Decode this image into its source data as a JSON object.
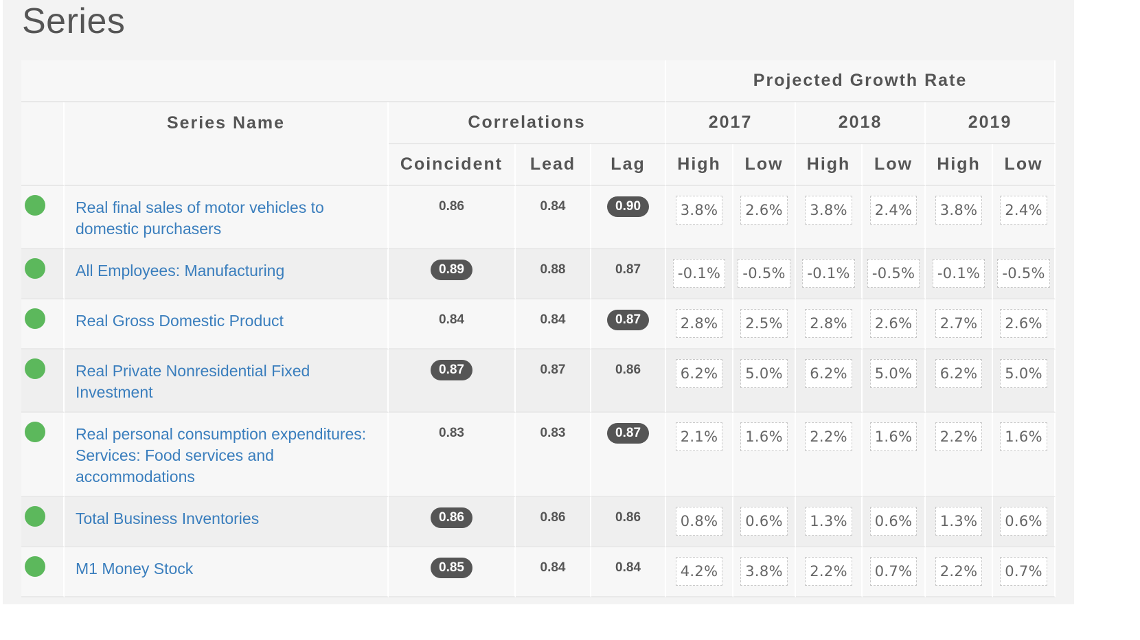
{
  "page": {
    "title": "Series"
  },
  "table": {
    "headers": {
      "projected_growth_rate": "Projected Growth Rate",
      "series_name": "Series Name",
      "correlations": "Correlations",
      "years": [
        "2017",
        "2018",
        "2019"
      ],
      "coincident": "Coincident",
      "lead": "Lead",
      "lag": "Lag",
      "high": "High",
      "low": "Low"
    },
    "rows": [
      {
        "status_color": "#5cb85c",
        "name": "Real final sales of motor vehicles to domestic purchasers",
        "coincident": "0.86",
        "lead": "0.84",
        "lag": "0.90",
        "highlight": "lag",
        "rates": [
          "3.8%",
          "2.6%",
          "3.8%",
          "2.4%",
          "3.8%",
          "2.4%"
        ]
      },
      {
        "status_color": "#5cb85c",
        "name": "All Employees: Manufacturing",
        "coincident": "0.89",
        "lead": "0.88",
        "lag": "0.87",
        "highlight": "coincident",
        "rates": [
          "-0.1%",
          "-0.5%",
          "-0.1%",
          "-0.5%",
          "-0.1%",
          "-0.5%"
        ]
      },
      {
        "status_color": "#5cb85c",
        "name": "Real Gross Domestic Product",
        "coincident": "0.84",
        "lead": "0.84",
        "lag": "0.87",
        "highlight": "lag",
        "rates": [
          "2.8%",
          "2.5%",
          "2.8%",
          "2.6%",
          "2.7%",
          "2.6%"
        ]
      },
      {
        "status_color": "#5cb85c",
        "name": "Real Private Nonresidential Fixed Investment",
        "coincident": "0.87",
        "lead": "0.87",
        "lag": "0.86",
        "highlight": "coincident",
        "rates": [
          "6.2%",
          "5.0%",
          "6.2%",
          "5.0%",
          "6.2%",
          "5.0%"
        ]
      },
      {
        "status_color": "#5cb85c",
        "name": "Real personal consumption expenditures: Services: Food services and accommodations",
        "coincident": "0.83",
        "lead": "0.83",
        "lag": "0.87",
        "highlight": "lag",
        "rates": [
          "2.1%",
          "1.6%",
          "2.2%",
          "1.6%",
          "2.2%",
          "1.6%"
        ]
      },
      {
        "status_color": "#5cb85c",
        "name": "Total Business Inventories",
        "coincident": "0.86",
        "lead": "0.86",
        "lag": "0.86",
        "highlight": "coincident",
        "rates": [
          "0.8%",
          "0.6%",
          "1.3%",
          "0.6%",
          "1.3%",
          "0.6%"
        ]
      },
      {
        "status_color": "#5cb85c",
        "name": "M1 Money Stock",
        "coincident": "0.85",
        "lead": "0.84",
        "lag": "0.84",
        "highlight": "coincident",
        "rates": [
          "4.2%",
          "3.8%",
          "2.2%",
          "0.7%",
          "2.2%",
          "0.7%"
        ]
      }
    ]
  }
}
